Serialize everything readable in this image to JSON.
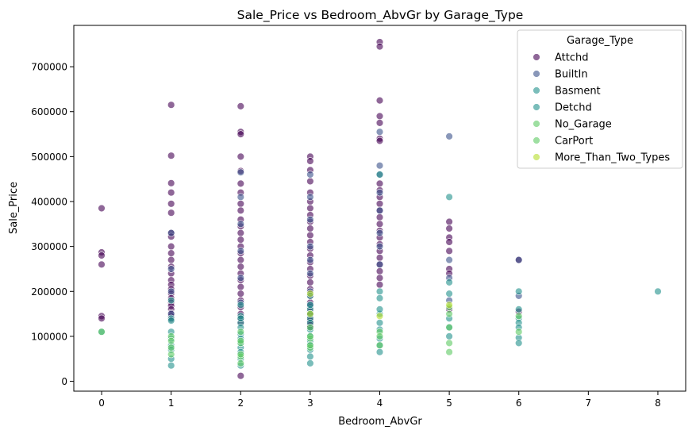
{
  "chart_data": {
    "type": "scatter",
    "title": "Sale_Price vs Bedroom_AbvGr by Garage_Type",
    "xlabel": "Bedroom_AbvGr",
    "ylabel": "Sale_Price",
    "xlim": [
      -0.4,
      8.4
    ],
    "ylim": [
      -22000,
      792000
    ],
    "xticks": [
      0,
      1,
      2,
      3,
      4,
      5,
      6,
      7,
      8
    ],
    "yticks": [
      0,
      100000,
      200000,
      300000,
      400000,
      500000,
      600000,
      700000
    ],
    "grid": false,
    "legend_title": "Garage_Type",
    "legend_position": "top-right",
    "series": [
      {
        "name": "Attchd",
        "color": "#440154",
        "x": [
          0,
          0,
          0,
          0,
          0,
          0,
          1,
          1,
          1,
          1,
          1,
          1,
          1,
          1,
          1,
          1,
          1,
          1,
          1,
          1,
          1,
          1,
          1,
          1,
          1,
          1,
          1,
          1,
          1,
          1,
          2,
          2,
          2,
          2,
          2,
          2,
          2,
          2,
          2,
          2,
          2,
          2,
          2,
          2,
          2,
          2,
          2,
          2,
          2,
          2,
          2,
          2,
          2,
          2,
          2,
          2,
          2,
          3,
          3,
          3,
          3,
          3,
          3,
          3,
          3,
          3,
          3,
          3,
          3,
          3,
          3,
          3,
          3,
          3,
          3,
          3,
          3,
          3,
          3,
          3,
          3,
          3,
          3,
          3,
          3,
          3,
          4,
          4,
          4,
          4,
          4,
          4,
          4,
          4,
          4,
          4,
          4,
          4,
          4,
          4,
          4,
          4,
          4,
          4,
          4,
          4,
          4,
          4,
          4,
          5,
          5,
          5,
          5,
          5,
          5,
          5,
          5,
          6,
          6
        ],
        "y": [
          385000,
          287000,
          280000,
          260000,
          145000,
          140000,
          615000,
          502000,
          441000,
          420000,
          395000,
          375000,
          330000,
          322000,
          300000,
          285000,
          270000,
          255000,
          240000,
          225000,
          215000,
          205000,
          195000,
          185000,
          175000,
          168000,
          160000,
          152000,
          145000,
          138000,
          612000,
          555000,
          550000,
          500000,
          468000,
          440000,
          420000,
          395000,
          380000,
          360000,
          345000,
          330000,
          315000,
          300000,
          285000,
          270000,
          255000,
          240000,
          225000,
          210000,
          195000,
          180000,
          165000,
          150000,
          140000,
          130000,
          12000,
          500000,
          490000,
          470000,
          445000,
          420000,
          400000,
          385000,
          370000,
          355000,
          340000,
          325000,
          310000,
          295000,
          280000,
          265000,
          250000,
          235000,
          220000,
          205000,
          190000,
          175000,
          165000,
          155000,
          148000,
          140000,
          135000,
          130000,
          125000,
          120000,
          755000,
          745000,
          625000,
          590000,
          575000,
          540000,
          535000,
          440000,
          425000,
          410000,
          395000,
          380000,
          365000,
          350000,
          335000,
          320000,
          305000,
          290000,
          275000,
          260000,
          245000,
          230000,
          215000,
          355000,
          340000,
          320000,
          310000,
          290000,
          250000,
          240000,
          160000,
          270000,
          155000
        ]
      },
      {
        "name": "BuiltIn",
        "color": "#3b528b",
        "x": [
          1,
          1,
          1,
          1,
          2,
          2,
          2,
          2,
          2,
          2,
          3,
          3,
          3,
          3,
          3,
          3,
          3,
          3,
          4,
          4,
          4,
          4,
          4,
          4,
          4,
          4,
          5,
          5,
          5,
          5,
          6,
          6
        ],
        "y": [
          330000,
          250000,
          200000,
          150000,
          465000,
          410000,
          350000,
          290000,
          230000,
          175000,
          460000,
          410000,
          360000,
          300000,
          270000,
          240000,
          200000,
          170000,
          555000,
          480000,
          460000,
          420000,
          380000,
          330000,
          300000,
          260000,
          545000,
          270000,
          230000,
          180000,
          270000,
          190000
        ]
      },
      {
        "name": "Basment",
        "color": "#21918c",
        "x": [
          1,
          1,
          2,
          2,
          2,
          3,
          3,
          3,
          4,
          4,
          4,
          5
        ],
        "y": [
          180000,
          140000,
          170000,
          145000,
          130000,
          190000,
          160000,
          140000,
          460000,
          200000,
          150000,
          410000
        ]
      },
      {
        "name": "Detchd",
        "color": "#21918c",
        "x": [
          0,
          1,
          1,
          1,
          1,
          1,
          1,
          1,
          2,
          2,
          2,
          2,
          2,
          2,
          2,
          2,
          2,
          3,
          3,
          3,
          3,
          3,
          3,
          3,
          3,
          3,
          3,
          4,
          4,
          4,
          4,
          4,
          4,
          4,
          5,
          5,
          5,
          5,
          5,
          6,
          6,
          6,
          6,
          6,
          6,
          6,
          8
        ],
        "y": [
          110000,
          135000,
          110000,
          95000,
          80000,
          70000,
          50000,
          35000,
          140000,
          120000,
          105000,
          95000,
          85000,
          75000,
          65000,
          50000,
          35000,
          170000,
          150000,
          130000,
          115000,
          100000,
          90000,
          80000,
          70000,
          55000,
          40000,
          185000,
          160000,
          130000,
          115000,
          95000,
          80000,
          65000,
          220000,
          195000,
          140000,
          120000,
          100000,
          200000,
          160000,
          140000,
          130000,
          120000,
          97000,
          85000,
          200000
        ]
      },
      {
        "name": "No_Garage",
        "color": "#5ec962",
        "x": [
          0,
          1,
          1,
          1,
          2,
          2,
          2,
          2,
          3,
          3,
          3,
          4,
          4,
          5,
          5,
          5,
          6,
          6
        ],
        "y": [
          110000,
          100000,
          75000,
          60000,
          110000,
          85000,
          55000,
          40000,
          120000,
          95000,
          75000,
          110000,
          80000,
          120000,
          85000,
          65000,
          145000,
          110000
        ]
      },
      {
        "name": "CarPort",
        "color": "#5ec962",
        "x": [
          1,
          2,
          2,
          3,
          3,
          4,
          5,
          5
        ],
        "y": [
          90000,
          90000,
          60000,
          100000,
          80000,
          100000,
          165000,
          150000
        ]
      },
      {
        "name": "More_Than_Two_Types",
        "color": "#b5de2b",
        "x": [
          3,
          3,
          4,
          5
        ],
        "y": [
          195000,
          150000,
          145000,
          170000
        ]
      }
    ]
  }
}
